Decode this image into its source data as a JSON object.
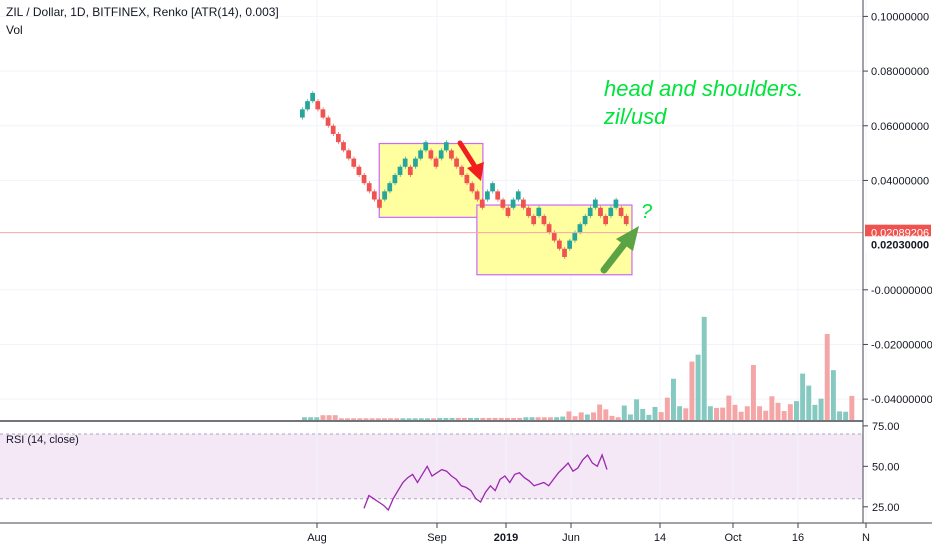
{
  "chart_data": {
    "type": "renko",
    "title": "ZIL / Dollar, 1D, BITFINEX, Renko [ATR(14), 0.003]",
    "volume_label": "Vol",
    "rsi_label": "RSI (14, close)",
    "price_axis": {
      "ticks": [
        {
          "value": 0.1,
          "label": "0.10000000"
        },
        {
          "value": 0.08,
          "label": "0.08000000"
        },
        {
          "value": 0.06,
          "label": "0.06000000"
        },
        {
          "value": 0.04,
          "label": "0.04000000"
        },
        {
          "value": 0.0,
          "label": "-0.00000000"
        },
        {
          "value": -0.02,
          "label": "-0.02000000"
        },
        {
          "value": -0.04,
          "label": "-0.04000000"
        }
      ],
      "ylim": [
        -0.048,
        0.106
      ]
    },
    "rsi_axis": {
      "ticks": [
        {
          "value": 75,
          "label": "75.00"
        },
        {
          "value": 50,
          "label": "50.00"
        },
        {
          "value": 25,
          "label": "25.00"
        }
      ],
      "ylim": [
        15,
        78
      ],
      "band": [
        30,
        70
      ]
    },
    "time_axis": [
      {
        "label": "Aug",
        "bold": false
      },
      {
        "label": "Sep",
        "bold": false
      },
      {
        "label": "2019",
        "bold": true
      },
      {
        "label": "Jun",
        "bold": false
      },
      {
        "label": "14",
        "bold": false
      },
      {
        "label": "Oct",
        "bold": false
      },
      {
        "label": "16",
        "bold": false
      },
      {
        "label": "N",
        "bold": false
      }
    ],
    "price_labels": [
      {
        "value": 0.02089206,
        "label": "0.02089206",
        "color": "#ef5350",
        "text_color": "#ffffff"
      },
      {
        "value": 0.0203,
        "label": "0.02030000",
        "color": "#ffffff",
        "text_color": "#131722"
      }
    ],
    "renko": {
      "brick_size": 0.003,
      "start": 0.063,
      "directions": [
        1,
        1,
        1,
        -1,
        -1,
        -1,
        -1,
        -1,
        -1,
        -1,
        -1,
        -1,
        -1,
        -1,
        -1,
        -1,
        1,
        1,
        1,
        1,
        1,
        -1,
        1,
        1,
        1,
        -1,
        -1,
        1,
        1,
        -1,
        -1,
        -1,
        -1,
        -1,
        -1,
        -1,
        1,
        1,
        -1,
        -1,
        -1,
        1,
        1,
        -1,
        -1,
        -1,
        1,
        -1,
        -1,
        -1,
        -1,
        -1,
        1,
        1,
        1,
        1,
        1,
        1,
        -1,
        -1,
        1,
        1,
        -1,
        -1
      ],
      "up_color": "#26a69a",
      "down_color": "#ef5350"
    },
    "volume": [
      0.8,
      0.8,
      0.8,
      1.4,
      1.4,
      1.4,
      0.5,
      0.5,
      0.5,
      0.5,
      0.5,
      0.5,
      0.5,
      0.5,
      0.5,
      0.5,
      0.5,
      0.5,
      0.5,
      0.5,
      0.5,
      0.5,
      0.6,
      0.6,
      0.6,
      0.6,
      0.6,
      0.6,
      0.6,
      0.6,
      0.6,
      0.6,
      0.6,
      0.6,
      0.6,
      0.6,
      0.8,
      0.8,
      0.8,
      0.8,
      0.8,
      0.8,
      1.0,
      2.5,
      1.1,
      2.2,
      1.6,
      2.2,
      4.5,
      3.1,
      1.2,
      0.8,
      4.2,
      1.6,
      6.0,
      3.2,
      1.5,
      3.8,
      2.3,
      6.5,
      12.0,
      4.0,
      3.4,
      17.0,
      19.0,
      30.0,
      4.0,
      3.5,
      3.6,
      7.1,
      4.4,
      2.4,
      4.0,
      16.0,
      4.0,
      2.7,
      6.9,
      5.0,
      2.6,
      4.6,
      5.5,
      13.5,
      10.0,
      4.4,
      6.2,
      25.0,
      14.5,
      2.5,
      2.4,
      7.0
    ],
    "volume_ylim": [
      0,
      32
    ],
    "rsi": [
      24,
      32,
      30,
      28,
      26,
      23,
      30,
      35,
      40,
      43,
      45,
      40,
      45,
      50,
      44,
      46,
      48,
      47,
      44,
      42,
      38,
      37,
      35,
      30,
      28,
      34,
      38,
      35,
      42,
      44,
      40,
      45,
      46,
      43,
      41,
      38,
      39,
      40,
      38,
      42,
      46,
      49,
      52,
      47,
      49,
      54,
      57,
      52,
      50,
      57,
      48
    ],
    "rsi_color": "#9c27b0",
    "annotations": [
      {
        "text": "head and shoulders.",
        "color": "#00e33b"
      },
      {
        "text": "zil/usd",
        "color": "#00e33b"
      },
      {
        "text": "?",
        "color": "#00e33b"
      }
    ],
    "boxes": [
      {
        "from_index": 16,
        "to_index": 34,
        "top": 0.0535,
        "bottom": 0.0265
      },
      {
        "from_index": 35,
        "to_index": 63,
        "top": 0.031,
        "bottom": 0.0055
      }
    ],
    "box_style": {
      "fill": "#ffffa0",
      "stroke": "#cc66ff"
    },
    "arrows": [
      {
        "direction": "down",
        "color": "#f21e1e"
      },
      {
        "direction": "up",
        "color": "#5ba344"
      }
    ]
  }
}
